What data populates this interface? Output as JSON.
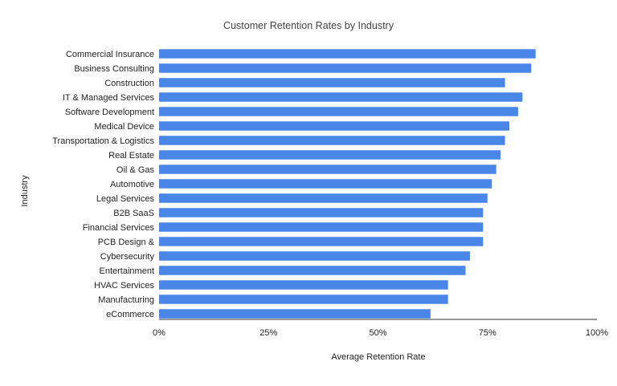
{
  "chart_data": {
    "type": "bar",
    "orientation": "horizontal",
    "title": "Customer Retention Rates by Industry",
    "xlabel": "Average Retention Rate",
    "ylabel": "Industry",
    "xlim": [
      0,
      1
    ],
    "x_ticks": [
      0,
      0.25,
      0.5,
      0.75,
      1
    ],
    "x_tick_labels": [
      "0%",
      "25%",
      "50%",
      "75%",
      "100%"
    ],
    "grid": false,
    "legend": "none",
    "bar_color": "#4a86e8",
    "categories": [
      "Commercial Insurance",
      "Business Consulting",
      "Construction",
      "IT & Managed Services",
      "Software Development",
      "Medical Device",
      "Transportation & Logistics",
      "Real Estate",
      "Oil & Gas",
      "Automotive",
      "Legal Services",
      "B2B SaaS",
      "Financial Services",
      "PCB Design &",
      "Cybersecurity",
      "Entertainment",
      "HVAC Services",
      "Manufacturing",
      "eCommerce"
    ],
    "values": [
      0.86,
      0.85,
      0.79,
      0.83,
      0.82,
      0.8,
      0.79,
      0.78,
      0.77,
      0.76,
      0.75,
      0.74,
      0.74,
      0.74,
      0.71,
      0.7,
      0.66,
      0.66,
      0.62
    ]
  }
}
